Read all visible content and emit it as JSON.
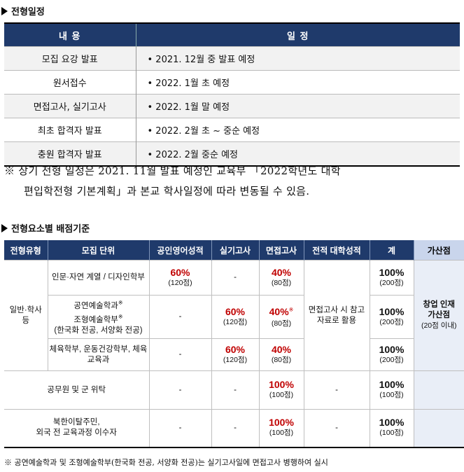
{
  "schedule": {
    "title": "전형일정",
    "headers": [
      "내 용",
      "일 정"
    ],
    "rows": [
      {
        "item": "모집 요강 발표",
        "date": "• 2021. 12월 중 발표 예정"
      },
      {
        "item": "원서접수",
        "date": "• 2022. 1월 초 예정"
      },
      {
        "item": "면접고사, 실기고사",
        "date": "• 2022. 1월 말 예정"
      },
      {
        "item": "최초 합격자 발표",
        "date": "• 2022. 2월 초 ~ 중순 예정"
      },
      {
        "item": "충원 합격자 발표",
        "date": "• 2022. 2월 중순 예정"
      }
    ],
    "note_line1": "※ 상기 전형 일정은 2021. 11월 발표 예정인 교육부 「2022학년도 대학",
    "note_line2": "편입학전형 기본계획」과 본교 학사일정에 따라 변동될 수 있음."
  },
  "scoring": {
    "title": "전형요소별 배점기준",
    "headers": [
      "전형유형",
      "모집 단위",
      "공인영어성적",
      "실기고사",
      "면접고사",
      "전적 대학성적",
      "계",
      "가산점"
    ],
    "type_general": "일반·학사 등",
    "rows": [
      {
        "unit": "인문·자연 계열 / 디자인학부",
        "eng": "60%",
        "eng_pts": "(120점)",
        "prac": "-",
        "prac_pts": "",
        "int": "40%",
        "int_pts": "(80점)",
        "total": "100%",
        "total_pts": "(200점)"
      },
      {
        "unit_a": "공연예술학과",
        "unit_b": "조형예술학부",
        "unit_c": "(한국화 전공, 서양화 전공)",
        "eng": "-",
        "prac": "60%",
        "prac_pts": "(120점)",
        "int": "40%",
        "int_pts": "(80점)",
        "total": "100%",
        "total_pts": "(200점)"
      },
      {
        "unit": "체육학부, 운동건강학부, 체육교육과",
        "eng": "-",
        "prac": "60%",
        "prac_pts": "(120점)",
        "int": "40%",
        "int_pts": "(80점)",
        "total": "100%",
        "total_pts": "(200점)"
      },
      {
        "unit": "공무원 및 군 위탁",
        "eng": "-",
        "prac": "-",
        "int": "100%",
        "int_pts": "(100점)",
        "prior": "-",
        "total": "100%",
        "total_pts": "(100점)"
      },
      {
        "unit_a": "북한이탈주민,",
        "unit_b": "외국 전 교육과정 이수자",
        "eng": "-",
        "prac": "-",
        "int": "100%",
        "int_pts": "(100점)",
        "prior": "-",
        "total": "100%",
        "total_pts": "(100점)"
      }
    ],
    "prior_general": "면접고사 시 참고자료로 활용",
    "bonus_a": "창업 인재",
    "bonus_b": "가산점",
    "bonus_c": "(20점 이내)",
    "mark": "※",
    "note": "※ 공연예술학과 및 조형예술학부(한국화 전공, 서양화 전공)는 실기고사일에 면접고사 병행하여 실시"
  }
}
